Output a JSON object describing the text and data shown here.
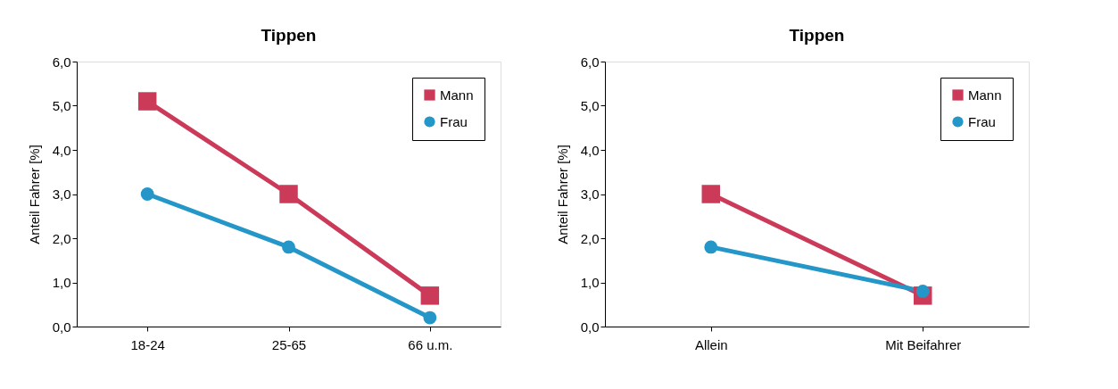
{
  "chart_data": [
    {
      "type": "line",
      "title": "Tippen",
      "ylabel": "Anteil Fahrer [%]",
      "categories": [
        "18-24",
        "25-65",
        "66 u.m."
      ],
      "series": [
        {
          "name": "Mann",
          "color": "#cc3a5a",
          "marker": "square",
          "values": [
            5.1,
            3.0,
            0.7
          ]
        },
        {
          "name": "Frau",
          "color": "#2596c8",
          "marker": "circle",
          "values": [
            3.0,
            1.8,
            0.2
          ]
        }
      ],
      "ylim": [
        0,
        6
      ],
      "yticks": [
        {
          "value": 0,
          "label": "0,0"
        },
        {
          "value": 1,
          "label": "1,0"
        },
        {
          "value": 2,
          "label": "2,0"
        },
        {
          "value": 3,
          "label": "3,0"
        },
        {
          "value": 4,
          "label": "4,0"
        },
        {
          "value": 5,
          "label": "5,0"
        },
        {
          "value": 6,
          "label": "6,0"
        }
      ],
      "grid": false,
      "legend": "top right",
      "line_style": "solid"
    },
    {
      "type": "line",
      "title": "Tippen",
      "ylabel": "Anteil Fahrer [%]",
      "categories": [
        "Allein",
        "Mit Beifahrer"
      ],
      "series": [
        {
          "name": "Mann",
          "color": "#cc3a5a",
          "marker": "square",
          "values": [
            3.0,
            0.7
          ]
        },
        {
          "name": "Frau",
          "color": "#2596c8",
          "marker": "circle",
          "values": [
            1.8,
            0.8
          ]
        }
      ],
      "ylim": [
        0,
        6
      ],
      "yticks": [
        {
          "value": 0,
          "label": "0,0"
        },
        {
          "value": 1,
          "label": "1,0"
        },
        {
          "value": 2,
          "label": "2,0"
        },
        {
          "value": 3,
          "label": "3,0"
        },
        {
          "value": 4,
          "label": "4,0"
        },
        {
          "value": 5,
          "label": "5,0"
        },
        {
          "value": 6,
          "label": "6,0"
        }
      ],
      "grid": false,
      "legend": "top right",
      "line_style": "solid"
    }
  ]
}
